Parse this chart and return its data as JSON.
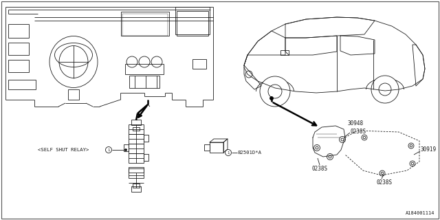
{
  "bg_color": "#ffffff",
  "line_color": "#1a1a1a",
  "fig_width": 6.4,
  "fig_height": 3.2,
  "dpi": 100,
  "labels": {
    "self_shut_relay": "<SELF SHUT RELAY>",
    "num1_a": "1",
    "num1_b": "1",
    "part_relay": "82501D*A",
    "part_30948": "30948",
    "part_0238S_1": "0238S",
    "part_30919": "30919",
    "part_0238S_2": "0238S",
    "part_0238S_3": "0238S",
    "watermark": "A184001114"
  }
}
